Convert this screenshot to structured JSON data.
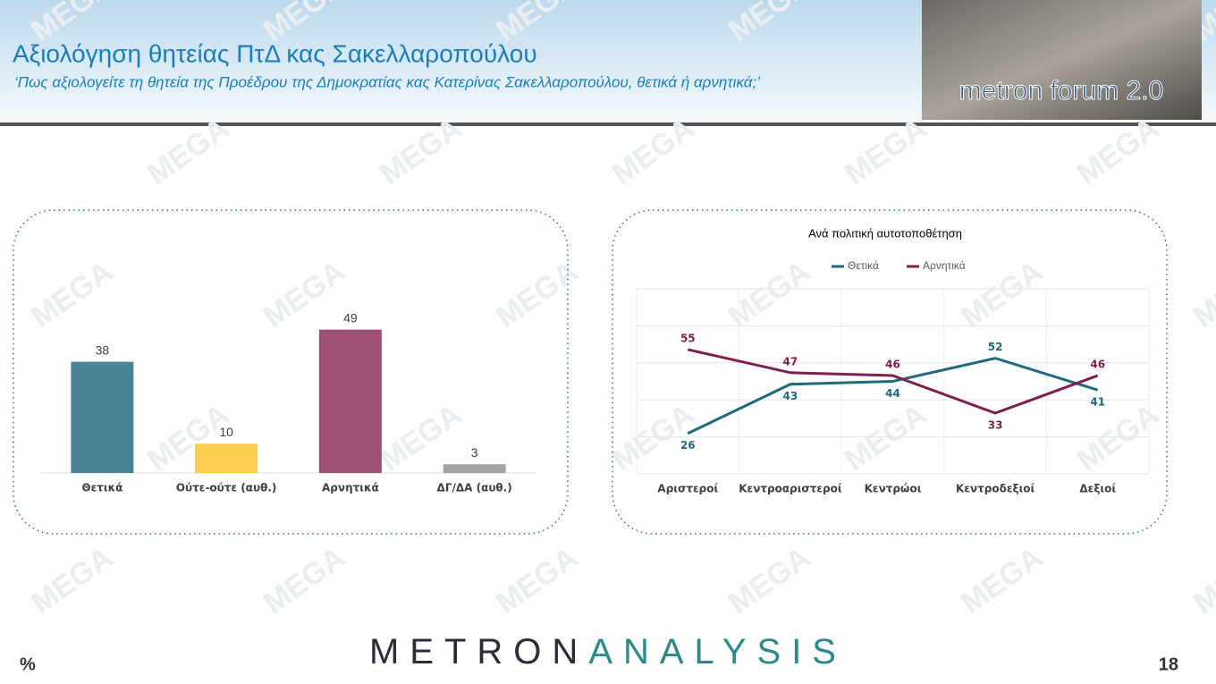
{
  "header": {
    "title": "Αξιολόγηση θητείας ΠτΔ κας Σακελλαροπούλου",
    "subtitle": "‘Πως αξιολογείτε τη θητεία της Προέδρου της Δημοκρατίας κας Κατερίνας Σακελλαροπούλου, θετικά ή αρνητικά;’"
  },
  "logo": "metron forum 2.0",
  "watermark": "MEGA",
  "footer": {
    "brand": [
      "METRON",
      "ANALYSIS"
    ],
    "unit": "%",
    "page": "18"
  },
  "chart_data": [
    {
      "type": "bar",
      "categories": [
        "Θετικά",
        "Ούτε-ούτε (αυθ.)",
        "Αρνητικά",
        "ΔΓ/ΔΑ (αυθ.)"
      ],
      "values": [
        38,
        10,
        49,
        3
      ],
      "colors": [
        "#4a8397",
        "#fdcd4e",
        "#9d4f74",
        "#a5a5a5"
      ],
      "ylim": [
        0,
        55
      ]
    },
    {
      "type": "line",
      "title": "Ανά πολιτική αυτοτοποθέτηση",
      "categories": [
        "Αριστεροί",
        "Κεντροαριστεροί",
        "Κεντρώοι",
        "Κεντροδεξιοί",
        "Δεξιοί"
      ],
      "series": [
        {
          "name": "Θετικά",
          "color": "#1f6a7d",
          "values": [
            26,
            43,
            44,
            52,
            41
          ]
        },
        {
          "name": "Αρνητικά",
          "color": "#7d1f4f",
          "values": [
            55,
            47,
            46,
            33,
            46
          ]
        }
      ],
      "ylim": [
        12,
        76
      ],
      "legend": "top"
    }
  ]
}
